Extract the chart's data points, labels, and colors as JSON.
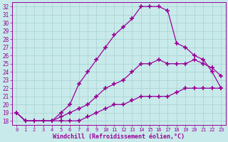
{
  "xlabel": "Windchill (Refroidissement éolien,°C)",
  "bg_color": "#c8eaea",
  "line_color": "#990099",
  "grid_color": "#a8d0d0",
  "xlim": [
    -0.5,
    23.5
  ],
  "ylim": [
    17.5,
    32.5
  ],
  "xticks": [
    0,
    1,
    2,
    3,
    4,
    5,
    6,
    7,
    8,
    9,
    10,
    11,
    12,
    13,
    14,
    15,
    16,
    17,
    18,
    19,
    20,
    21,
    22,
    23
  ],
  "yticks": [
    18,
    19,
    20,
    21,
    22,
    23,
    24,
    25,
    26,
    27,
    28,
    29,
    30,
    31,
    32
  ],
  "line1_x": [
    0,
    1,
    2,
    3,
    4,
    5,
    6,
    7,
    8,
    9,
    10,
    11,
    12,
    13,
    14,
    15,
    16,
    17,
    18,
    19,
    20,
    21,
    22,
    23
  ],
  "line1_y": [
    19,
    18,
    18,
    18,
    18,
    18,
    18,
    18,
    18.5,
    19,
    19.5,
    20,
    20,
    20.5,
    21,
    21,
    21,
    21,
    21.5,
    22,
    22,
    22,
    22,
    22
  ],
  "line2_x": [
    0,
    1,
    2,
    3,
    4,
    5,
    6,
    7,
    8,
    9,
    10,
    11,
    12,
    13,
    14,
    15,
    16,
    17,
    18,
    19,
    20,
    21,
    22,
    23
  ],
  "line2_y": [
    19,
    18,
    18,
    18,
    18,
    18.5,
    19,
    19.5,
    20,
    21,
    22,
    22.5,
    23,
    24,
    25,
    25,
    25.5,
    25,
    25,
    25,
    25.5,
    25,
    24.5,
    23.5
  ],
  "line3_x": [
    0,
    1,
    2,
    3,
    4,
    5,
    6,
    7,
    8,
    9,
    10,
    11,
    12,
    13,
    14,
    15,
    16,
    17,
    18,
    19,
    20,
    21,
    22,
    23
  ],
  "line3_y": [
    19,
    18,
    18,
    18,
    18,
    19,
    20,
    22.5,
    24,
    25.5,
    27,
    28.5,
    29.5,
    30.5,
    32,
    32,
    32,
    31.5,
    27.5,
    27,
    26,
    25.5,
    24,
    22
  ],
  "marker": "+",
  "markersize": 4,
  "markeredgewidth": 1.2,
  "linewidth": 0.9,
  "xlabel_fontsize": 6.0,
  "tick_fontsize": 5.5
}
